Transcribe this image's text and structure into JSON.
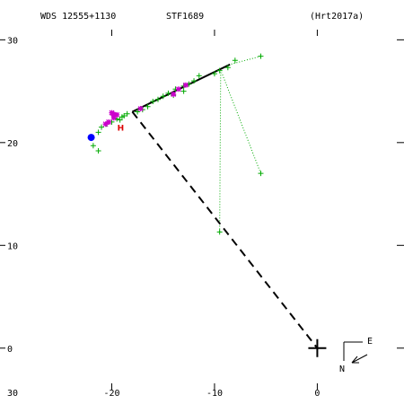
{
  "chart_data": {
    "type": "scatter",
    "header": {
      "wds": "WDS 12555+1130",
      "name": "STF1689",
      "orbit_ref": "(Hrt2017a)"
    },
    "compass": {
      "east": "E",
      "north": "N"
    },
    "xlim": [
      -30,
      8
    ],
    "ylim": [
      -5,
      33
    ],
    "x_ticks": [
      {
        "value": -20,
        "label": "-20"
      },
      {
        "value": -10,
        "label": "-10"
      },
      {
        "value": 0,
        "label": "0"
      }
    ],
    "y_ticks": [
      {
        "value": 30,
        "label": "30"
      },
      {
        "value": 20,
        "label": "20"
      },
      {
        "value": 10,
        "label": "10"
      },
      {
        "value": 0,
        "label": "0"
      }
    ],
    "corner_label": "30",
    "colors": {
      "orbit": "#000000",
      "node_line": "#000000",
      "observations": "#00aa00",
      "residuals": "#00aa00",
      "highlight_obs": "#cc00cc",
      "recent": "#0000ff",
      "hipparcos": "#dd0000"
    },
    "orbit_arc": [
      [
        -18,
        23
      ],
      [
        -8.5,
        27.6
      ]
    ],
    "node_line": [
      [
        -18,
        23
      ],
      [
        0,
        0
      ]
    ],
    "primary": [
      0,
      0
    ],
    "observations": [
      [
        -5.5,
        28.4
      ],
      [
        -8.0,
        28.0
      ],
      [
        -8.7,
        27.3
      ],
      [
        -9.5,
        27.0
      ],
      [
        -10.0,
        26.7
      ],
      [
        -11.5,
        26.5
      ],
      [
        -12.0,
        26.0
      ],
      [
        -12.5,
        25.7
      ],
      [
        -13.0,
        25.5
      ],
      [
        -13.8,
        25.2
      ],
      [
        -14.5,
        24.8
      ],
      [
        -15.0,
        24.5
      ],
      [
        -15.5,
        24.2
      ],
      [
        -16.0,
        24.0
      ],
      [
        -16.5,
        23.5
      ],
      [
        -17.0,
        23.2
      ],
      [
        -17.5,
        23.0
      ],
      [
        -18.5,
        22.8
      ],
      [
        -19.0,
        22.5
      ],
      [
        -19.5,
        22.3
      ],
      [
        -20.0,
        22.0
      ],
      [
        -20.5,
        21.8
      ],
      [
        -21.0,
        21.5
      ],
      [
        -21.3,
        21.0
      ],
      [
        -21.8,
        19.7
      ],
      [
        -21.3,
        19.2
      ],
      [
        -5.5,
        17.0
      ],
      [
        -9.5,
        11.3
      ],
      [
        -13.0,
        25.0
      ],
      [
        -14.0,
        24.6
      ],
      [
        -19.2,
        22.2
      ],
      [
        -18.8,
        22.6
      ]
    ],
    "residual_links": [
      [
        [
          -5.5,
          28.4
        ],
        [
          -8.5,
          27.6
        ]
      ],
      [
        [
          -5.5,
          17.0
        ],
        [
          -9.3,
          26.8
        ]
      ],
      [
        [
          -9.5,
          11.3
        ],
        [
          -9.4,
          26.9
        ]
      ]
    ],
    "highlight_obs": [
      [
        -13.5,
        25.2
      ],
      [
        -14.0,
        24.7
      ],
      [
        -17.2,
        23.3
      ],
      [
        -19.8,
        22.4
      ],
      [
        -20.3,
        22.0
      ],
      [
        -20.6,
        21.8
      ],
      [
        -19.5,
        22.7
      ],
      [
        -12.8,
        25.6
      ],
      [
        -20.0,
        22.9
      ]
    ],
    "recent_obs": [
      [
        -22.0,
        20.5
      ]
    ],
    "highlight_dots": [
      [
        -19.8,
        22.7
      ]
    ],
    "hipparcos_marker": {
      "x": -19.2,
      "y": 21.5,
      "label": "H"
    }
  }
}
